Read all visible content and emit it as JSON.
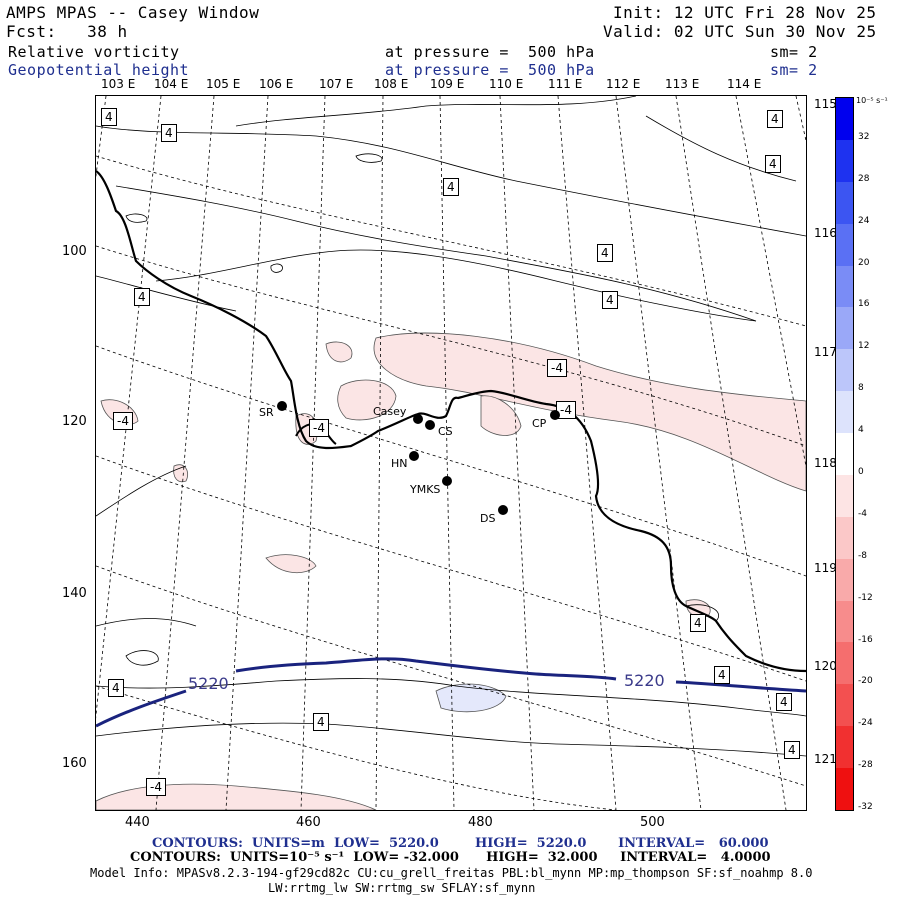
{
  "header": {
    "title": "AMPS MPAS -- Casey Window",
    "init": "Init: 12 UTC Fri 28 Nov 25",
    "fcst": "Fcst:   38 h",
    "valid": "Valid: 02 UTC Sun 30 Nov 25",
    "field1": "Relative vorticity",
    "field1_level": "at pressure =  500 hPa",
    "field1_sm": "sm= 2",
    "field2": "Geopotential height",
    "field2_level": "at pressure =  500 hPa",
    "field2_sm": "sm= 2"
  },
  "top_lon_labels": [
    "103 E",
    "104 E",
    "105 E",
    "106 E",
    "107 E",
    "108 E",
    "109 E",
    "110 E",
    "111 E",
    "112 E",
    "113 E",
    "114 E"
  ],
  "right_lon_labels": [
    "115 E",
    "116 E",
    "117 E",
    "118 E",
    "119 E",
    "120 E",
    "121 E"
  ],
  "y_ticks": [
    "100",
    "120",
    "140",
    "160"
  ],
  "x_ticks": [
    "440",
    "460",
    "480",
    "500"
  ],
  "stations": [
    "SR",
    "Casey",
    "CS",
    "HN",
    "YMKS",
    "DS",
    "CP"
  ],
  "contour_labels": {
    "pos": "4",
    "neg": "-4",
    "height": "5220"
  },
  "colorbar": {
    "unit": "10⁻⁵ s⁻¹",
    "ticks": [
      "32",
      "28",
      "24",
      "20",
      "16",
      "12",
      "8",
      "4",
      "0",
      "-4",
      "-8",
      "-12",
      "-16",
      "-20",
      "-24",
      "-28",
      "-32"
    ],
    "colors": [
      "#0000ee",
      "#1e32f0",
      "#3c55f2",
      "#5a70f4",
      "#7a8cf6",
      "#9aa8f8",
      "#bcc6fa",
      "#dde3fc",
      "#ffffff",
      "#fde4e4",
      "#fbc8c8",
      "#f9aaaa",
      "#f78c8c",
      "#f56e6e",
      "#f35050",
      "#f13030",
      "#ef1010"
    ]
  },
  "footer": {
    "line1": "CONTOURS:  UNITS=m  LOW=  5220.0        HIGH=  5220.0       INTERVAL=   60.000",
    "line2": "CONTOURS:  UNITS=10⁻⁵ s⁻¹  LOW= -32.000      HIGH=  32.000     INTERVAL=   4.0000",
    "line3": "Model Info: MPASv8.2.3-194-gf29cd82c CU:cu_grell_freitas PBL:bl_mynn MP:mp_thompson SF:sf_noahmp 8.0",
    "line4": "LW:rrtmg_lw SW:rrtmg_sw SFLAY:sf_mynn"
  }
}
